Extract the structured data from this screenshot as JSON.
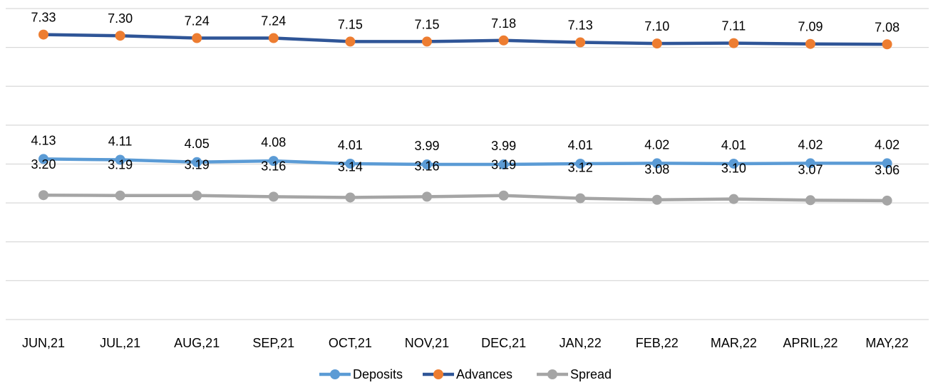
{
  "chart_data": {
    "type": "line",
    "categories": [
      "JUN,21",
      "JUL,21",
      "AUG,21",
      "SEP,21",
      "OCT,21",
      "NOV,21",
      "DEC,21",
      "JAN,22",
      "FEB,22",
      "MAR,22",
      "APRIL,22",
      "MAY,22"
    ],
    "series": [
      {
        "name": "Deposits",
        "color": "#5b9bd5",
        "marker_color": "#5b9bd5",
        "values": [
          4.13,
          4.11,
          4.05,
          4.08,
          4.01,
          3.99,
          3.99,
          4.01,
          4.02,
          4.01,
          4.02,
          4.02
        ],
        "labels": [
          "4.13",
          "4.11",
          "4.05",
          "4.08",
          "4.01",
          "3.99",
          "3.99",
          "4.01",
          "4.02",
          "4.01",
          "4.02",
          "4.02"
        ]
      },
      {
        "name": "Advances",
        "color": "#2f5597",
        "marker_color": "#ed7d31",
        "values": [
          7.33,
          7.3,
          7.24,
          7.24,
          7.15,
          7.15,
          7.18,
          7.13,
          7.1,
          7.11,
          7.09,
          7.08
        ],
        "labels": [
          "7.33",
          "7.30",
          "7.24",
          "7.24",
          "7.15",
          "7.15",
          "7.18",
          "7.13",
          "7.10",
          "7.11",
          "7.09",
          "7.08"
        ]
      },
      {
        "name": "Spread",
        "color": "#a5a5a5",
        "marker_color": "#a5a5a5",
        "values": [
          3.2,
          3.19,
          3.19,
          3.16,
          3.14,
          3.16,
          3.19,
          3.12,
          3.08,
          3.1,
          3.07,
          3.06
        ],
        "labels": [
          "3.20",
          "3.19",
          "3.19",
          "3.16",
          "3.14",
          "3.16",
          "3.19",
          "3.12",
          "3.08",
          "3.10",
          "3.07",
          "3.06"
        ]
      }
    ],
    "ylim": [
      0,
      8
    ],
    "y_gridlines": [
      0,
      1,
      2,
      3,
      4,
      5,
      6,
      7,
      8
    ],
    "grid": true,
    "y_axis_labels_shown": false,
    "legend_position": "bottom"
  }
}
